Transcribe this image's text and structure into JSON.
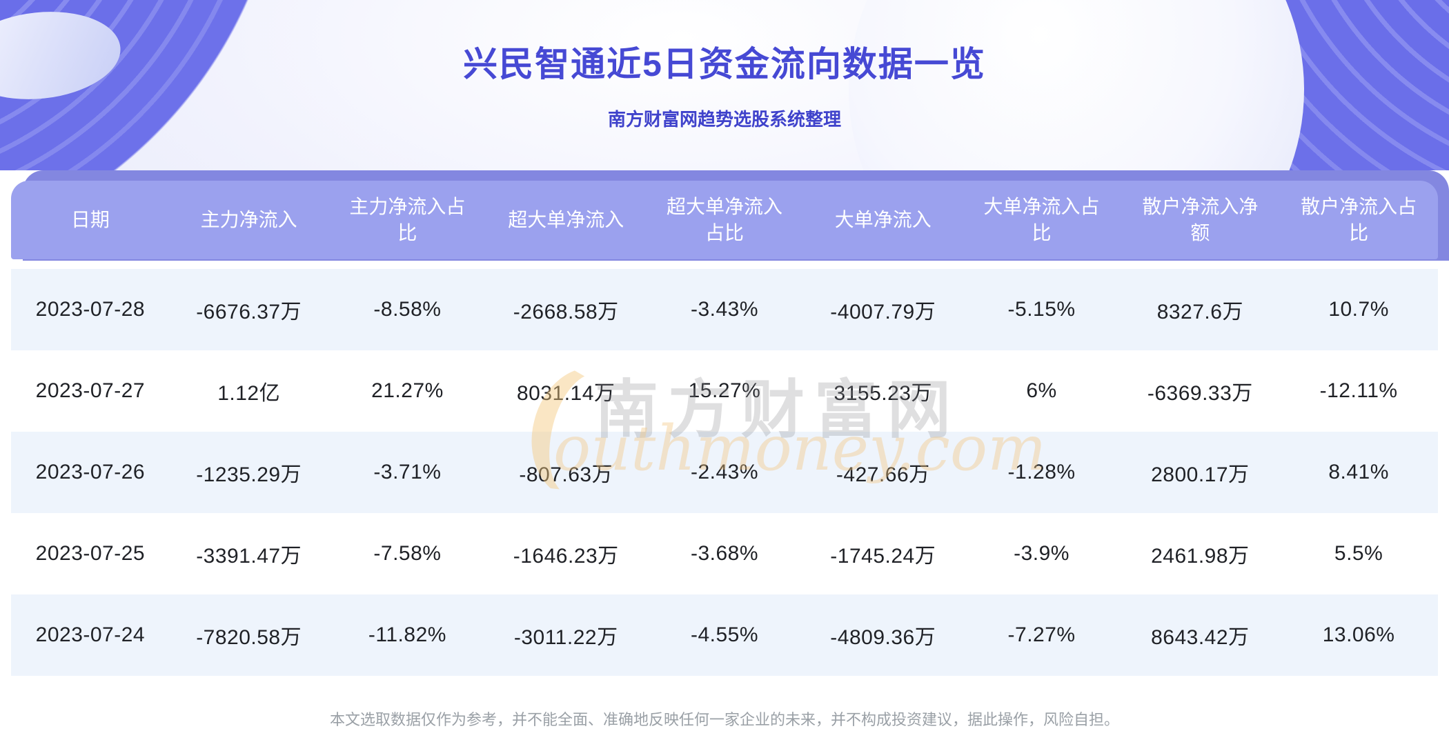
{
  "page": {
    "title": "兴民智通近5日资金流向数据一览",
    "subtitle": "南方财富网趋势选股系统整理",
    "disclaimer": "本文选取数据仅作为参考，并不能全面、准确地反映任何一家企业的未来，并不构成投资建议，据此操作，风险自担。"
  },
  "watermark": {
    "zh": "南方财富网",
    "en": "outhmoney.com"
  },
  "colors": {
    "hero_purple": "#6a6ee9",
    "back_band": "#8387e0",
    "header_bg": "#9ba1ee",
    "row_alt_bg": "#eef4fc",
    "title_text": "#4649d4",
    "subtitle_text": "#3f42cb",
    "cell_text": "#1f2126",
    "disclaimer_text": "#9aa0a6"
  },
  "chart_data": {
    "type": "table",
    "title": "兴民智通近5日资金流向数据一览",
    "subtitle": "南方财富网趋势选股系统整理",
    "columns": [
      "日期",
      "主力净流入",
      "主力净流入占比",
      "超大单净流入",
      "超大单净流入占比",
      "大单净流入",
      "大单净流入占比",
      "散户净流入净额",
      "散户净流入占比"
    ],
    "rows": [
      [
        "2023-07-28",
        "-6676.37万",
        "-8.58%",
        "-2668.58万",
        "-3.43%",
        "-4007.79万",
        "-5.15%",
        "8327.6万",
        "10.7%"
      ],
      [
        "2023-07-27",
        "1.12亿",
        "21.27%",
        "8031.14万",
        "15.27%",
        "3155.23万",
        "6%",
        "-6369.33万",
        "-12.11%"
      ],
      [
        "2023-07-26",
        "-1235.29万",
        "-3.71%",
        "-807.63万",
        "-2.43%",
        "-427.66万",
        "-1.28%",
        "2800.17万",
        "8.41%"
      ],
      [
        "2023-07-25",
        "-3391.47万",
        "-7.58%",
        "-1646.23万",
        "-3.68%",
        "-1745.24万",
        "-3.9%",
        "2461.98万",
        "5.5%"
      ],
      [
        "2023-07-24",
        "-7820.58万",
        "-11.82%",
        "-3011.22万",
        "-4.55%",
        "-4809.36万",
        "-7.27%",
        "8643.42万",
        "13.06%"
      ]
    ]
  }
}
